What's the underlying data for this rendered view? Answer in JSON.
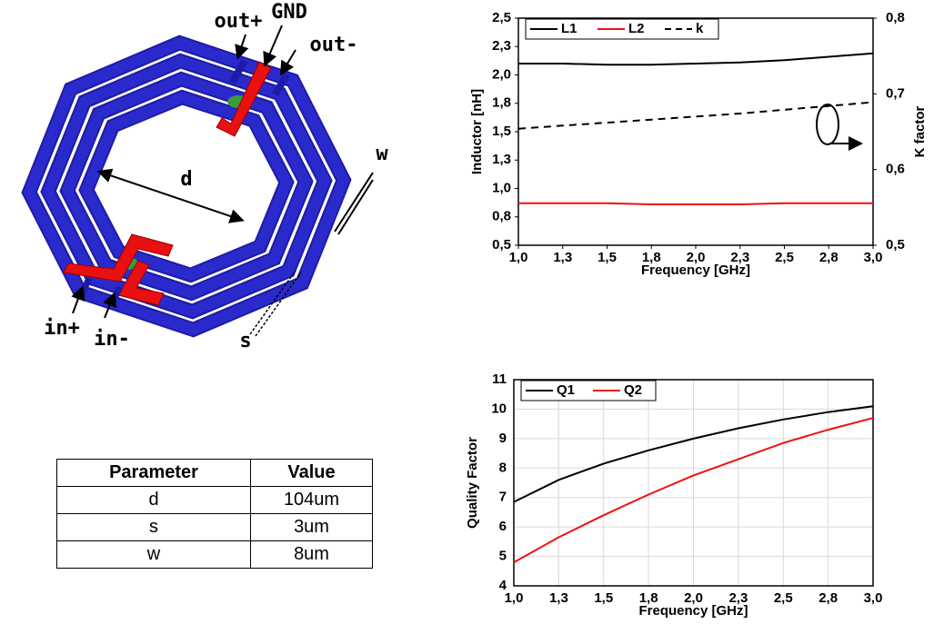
{
  "diagram": {
    "labels": [
      "out+",
      "GND",
      "out-",
      "w",
      "d",
      "in+",
      "in-",
      "s"
    ]
  },
  "table": {
    "header": [
      "Parameter",
      "Value"
    ],
    "rows": [
      [
        "d",
        "104um"
      ],
      [
        "s",
        "3um"
      ],
      [
        "w",
        "8um"
      ]
    ]
  },
  "chart_data": [
    {
      "type": "line",
      "xlabel": "Frequency [GHz]",
      "ylabel": "Inductor [nH]",
      "y2label": "K factor",
      "x": [
        1.0,
        1.25,
        1.5,
        1.75,
        2.0,
        2.25,
        2.5,
        2.75,
        3.0
      ],
      "xlim": [
        1.0,
        3.0
      ],
      "xticks": [
        {
          "value": 1.0,
          "label": "1,0"
        },
        {
          "value": 1.25,
          "label": "1,3"
        },
        {
          "value": 1.5,
          "label": "1,5"
        },
        {
          "value": 1.75,
          "label": "1,8"
        },
        {
          "value": 2.0,
          "label": "2,0"
        },
        {
          "value": 2.25,
          "label": "2,3"
        },
        {
          "value": 2.5,
          "label": "2,5"
        },
        {
          "value": 2.75,
          "label": "2,8"
        },
        {
          "value": 3.0,
          "label": "3,0"
        }
      ],
      "ylim": [
        0.5,
        2.5
      ],
      "yticks": [
        {
          "value": 0.5,
          "label": "0,5"
        },
        {
          "value": 0.75,
          "label": "0,8"
        },
        {
          "value": 1.0,
          "label": "1,0"
        },
        {
          "value": 1.25,
          "label": "1,3"
        },
        {
          "value": 1.5,
          "label": "1,5"
        },
        {
          "value": 1.75,
          "label": "1,8"
        },
        {
          "value": 2.0,
          "label": "2,0"
        },
        {
          "value": 2.25,
          "label": "2,3"
        },
        {
          "value": 2.5,
          "label": "2,5"
        }
      ],
      "y2lim": [
        0.5,
        0.8
      ],
      "y2ticks": [
        {
          "value": 0.5,
          "label": "0,5"
        },
        {
          "value": 0.6,
          "label": "0,6"
        },
        {
          "value": 0.7,
          "label": "0,7"
        },
        {
          "value": 0.8,
          "label": "0,8"
        }
      ],
      "grid": false,
      "legend": "upper left",
      "series": [
        {
          "name": "L1",
          "color": "#000000",
          "linestyle": "solid",
          "values": [
            2.1,
            2.1,
            2.09,
            2.09,
            2.1,
            2.11,
            2.13,
            2.16,
            2.19
          ]
        },
        {
          "name": "L2",
          "color": "#ee1111",
          "linestyle": "solid",
          "values": [
            0.87,
            0.87,
            0.87,
            0.86,
            0.86,
            0.86,
            0.87,
            0.87,
            0.87
          ]
        },
        {
          "name": "k",
          "color": "#000000",
          "linestyle": "dashed",
          "axis": "y2",
          "values": [
            0.654,
            0.658,
            0.662,
            0.666,
            0.67,
            0.674,
            0.679,
            0.684,
            0.689
          ]
        }
      ]
    },
    {
      "type": "line",
      "xlabel": "Frequency [GHz]",
      "ylabel": "Quality Factor",
      "x": [
        1.0,
        1.25,
        1.5,
        1.75,
        2.0,
        2.25,
        2.5,
        2.75,
        3.0
      ],
      "xlim": [
        1.0,
        3.0
      ],
      "xticks": [
        {
          "value": 1.0,
          "label": "1,0"
        },
        {
          "value": 1.25,
          "label": "1,3"
        },
        {
          "value": 1.5,
          "label": "1,5"
        },
        {
          "value": 1.75,
          "label": "1,8"
        },
        {
          "value": 2.0,
          "label": "2,0"
        },
        {
          "value": 2.25,
          "label": "2,3"
        },
        {
          "value": 2.5,
          "label": "2,5"
        },
        {
          "value": 2.75,
          "label": "2,8"
        },
        {
          "value": 3.0,
          "label": "3,0"
        }
      ],
      "ylim": [
        4,
        11
      ],
      "yticks": [
        4,
        5,
        6,
        7,
        8,
        9,
        10,
        11
      ],
      "grid": true,
      "legend": "upper left",
      "series": [
        {
          "name": "Q1",
          "color": "#000000",
          "linestyle": "solid",
          "values": [
            6.85,
            7.6,
            8.15,
            8.6,
            9.0,
            9.35,
            9.65,
            9.9,
            10.1
          ]
        },
        {
          "name": "Q2",
          "color": "#ee1111",
          "linestyle": "solid",
          "values": [
            4.8,
            5.65,
            6.4,
            7.1,
            7.75,
            8.3,
            8.85,
            9.3,
            9.7
          ]
        }
      ]
    }
  ]
}
